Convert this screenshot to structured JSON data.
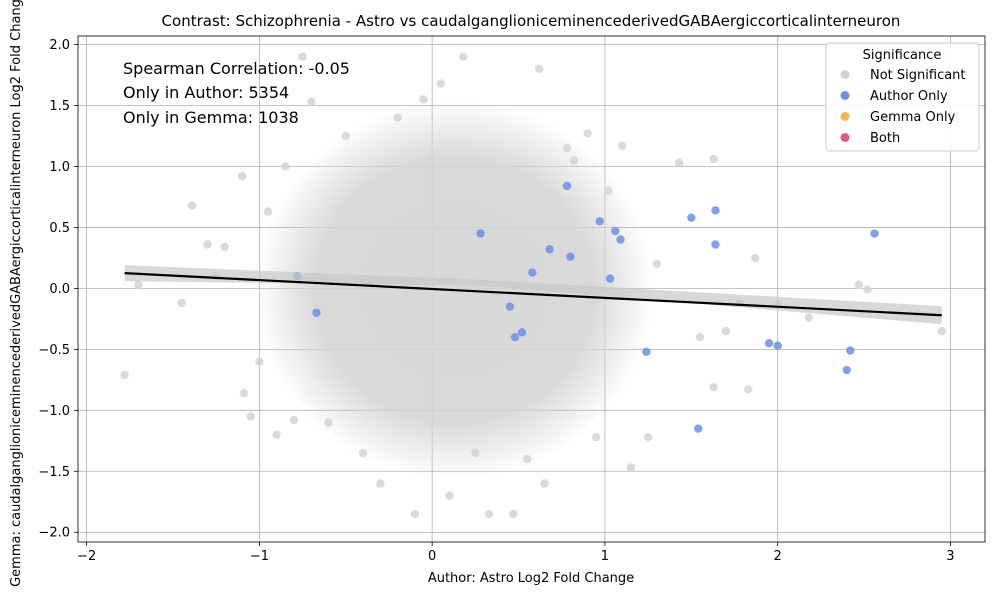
{
  "chart_data": {
    "type": "scatter",
    "title": "Contrast: Schizophrenia - Astro vs caudalganglioniceminencederivedGABAergiccorticalinterneuron",
    "xlabel": "Author: Astro Log2 Fold Change",
    "ylabel": "Gemma: caudalganglioniceminencederivedGABAergiccorticalinterneuron Log2 Fold Change",
    "xlim": [
      -2.05,
      3.2
    ],
    "ylim": [
      -2.08,
      2.07
    ],
    "x_ticks": [
      -2,
      -1,
      0,
      1,
      2,
      3
    ],
    "x_tick_labels": [
      "−2",
      "−1",
      "0",
      "1",
      "2",
      "3"
    ],
    "y_ticks": [
      -2.0,
      -1.5,
      -1.0,
      -0.5,
      0.0,
      0.5,
      1.0,
      1.5,
      2.0
    ],
    "y_tick_labels": [
      "−2.0",
      "−1.5",
      "−1.0",
      "−0.5",
      "0.0",
      "0.5",
      "1.0",
      "1.5",
      "2.0"
    ],
    "grid": true,
    "annotations": [
      "Spearman Correlation: -0.05",
      "Only in Author: 5354",
      "Only in Gemma: 1038"
    ],
    "legend": {
      "title": "Significance",
      "position": "top-right",
      "entries": [
        {
          "label": "Not Significant",
          "color": "#d3d3d3"
        },
        {
          "label": "Author Only",
          "color": "#6f8fe0"
        },
        {
          "label": "Gemma Only",
          "color": "#f5b35a"
        },
        {
          "label": "Both",
          "color": "#e0607a"
        }
      ]
    },
    "regression_line": {
      "x": [
        -1.78,
        2.95
      ],
      "y": [
        0.125,
        -0.22
      ],
      "color": "#000000"
    },
    "series": [
      {
        "name": "Not Significant",
        "color": "#d3d3d3",
        "points": [
          [
            -1.78,
            -0.71
          ],
          [
            -1.7,
            0.03
          ],
          [
            -1.45,
            -0.12
          ],
          [
            -1.39,
            0.68
          ],
          [
            -1.3,
            0.36
          ],
          [
            -1.25,
            0.1
          ],
          [
            -1.2,
            0.34
          ],
          [
            -1.1,
            0.92
          ],
          [
            -1.09,
            -0.86
          ],
          [
            -1.05,
            -1.05
          ],
          [
            -1.0,
            -0.6
          ],
          [
            -0.95,
            0.63
          ],
          [
            -0.9,
            -1.2
          ],
          [
            -0.85,
            1.0
          ],
          [
            -0.8,
            -1.08
          ],
          [
            -0.75,
            1.9
          ],
          [
            -0.7,
            1.53
          ],
          [
            -0.6,
            -1.1
          ],
          [
            -0.5,
            1.25
          ],
          [
            -0.4,
            -1.35
          ],
          [
            -0.3,
            -1.6
          ],
          [
            -0.2,
            1.4
          ],
          [
            -0.1,
            -1.85
          ],
          [
            -0.05,
            1.55
          ],
          [
            0.05,
            1.68
          ],
          [
            0.1,
            -1.7
          ],
          [
            0.18,
            1.9
          ],
          [
            0.25,
            -1.35
          ],
          [
            0.33,
            -1.85
          ],
          [
            0.47,
            -1.85
          ],
          [
            0.55,
            -1.4
          ],
          [
            0.62,
            1.8
          ],
          [
            0.65,
            -1.6
          ],
          [
            0.78,
            1.15
          ],
          [
            0.82,
            1.05
          ],
          [
            0.9,
            1.27
          ],
          [
            0.95,
            -1.22
          ],
          [
            1.02,
            0.8
          ],
          [
            1.1,
            1.17
          ],
          [
            1.15,
            -1.47
          ],
          [
            1.25,
            -1.22
          ],
          [
            1.3,
            0.2
          ],
          [
            1.43,
            1.03
          ],
          [
            1.55,
            -0.4
          ],
          [
            1.63,
            1.06
          ],
          [
            1.63,
            -0.81
          ],
          [
            1.7,
            -0.35
          ],
          [
            1.78,
            -0.12
          ],
          [
            1.83,
            -0.83
          ],
          [
            1.87,
            0.25
          ],
          [
            2.0,
            -0.14
          ],
          [
            2.18,
            -0.24
          ],
          [
            2.47,
            0.03
          ],
          [
            2.52,
            -0.01
          ],
          [
            2.95,
            -0.35
          ]
        ]
      },
      {
        "name": "Author Only",
        "color": "#6f8fe0",
        "points": [
          [
            -0.78,
            0.1
          ],
          [
            -0.67,
            -0.2
          ],
          [
            0.28,
            0.45
          ],
          [
            0.45,
            -0.15
          ],
          [
            0.48,
            -0.4
          ],
          [
            0.52,
            -0.36
          ],
          [
            0.58,
            0.13
          ],
          [
            0.68,
            0.32
          ],
          [
            0.78,
            0.84
          ],
          [
            0.8,
            0.26
          ],
          [
            0.97,
            0.55
          ],
          [
            1.03,
            0.08
          ],
          [
            1.06,
            0.47
          ],
          [
            1.09,
            0.4
          ],
          [
            1.24,
            -0.52
          ],
          [
            1.5,
            0.58
          ],
          [
            1.54,
            -1.15
          ],
          [
            1.64,
            0.64
          ],
          [
            1.64,
            0.36
          ],
          [
            1.95,
            -0.45
          ],
          [
            2.0,
            -0.47
          ],
          [
            2.4,
            -0.67
          ],
          [
            2.42,
            -0.51
          ],
          [
            2.56,
            0.45
          ]
        ]
      }
    ]
  }
}
